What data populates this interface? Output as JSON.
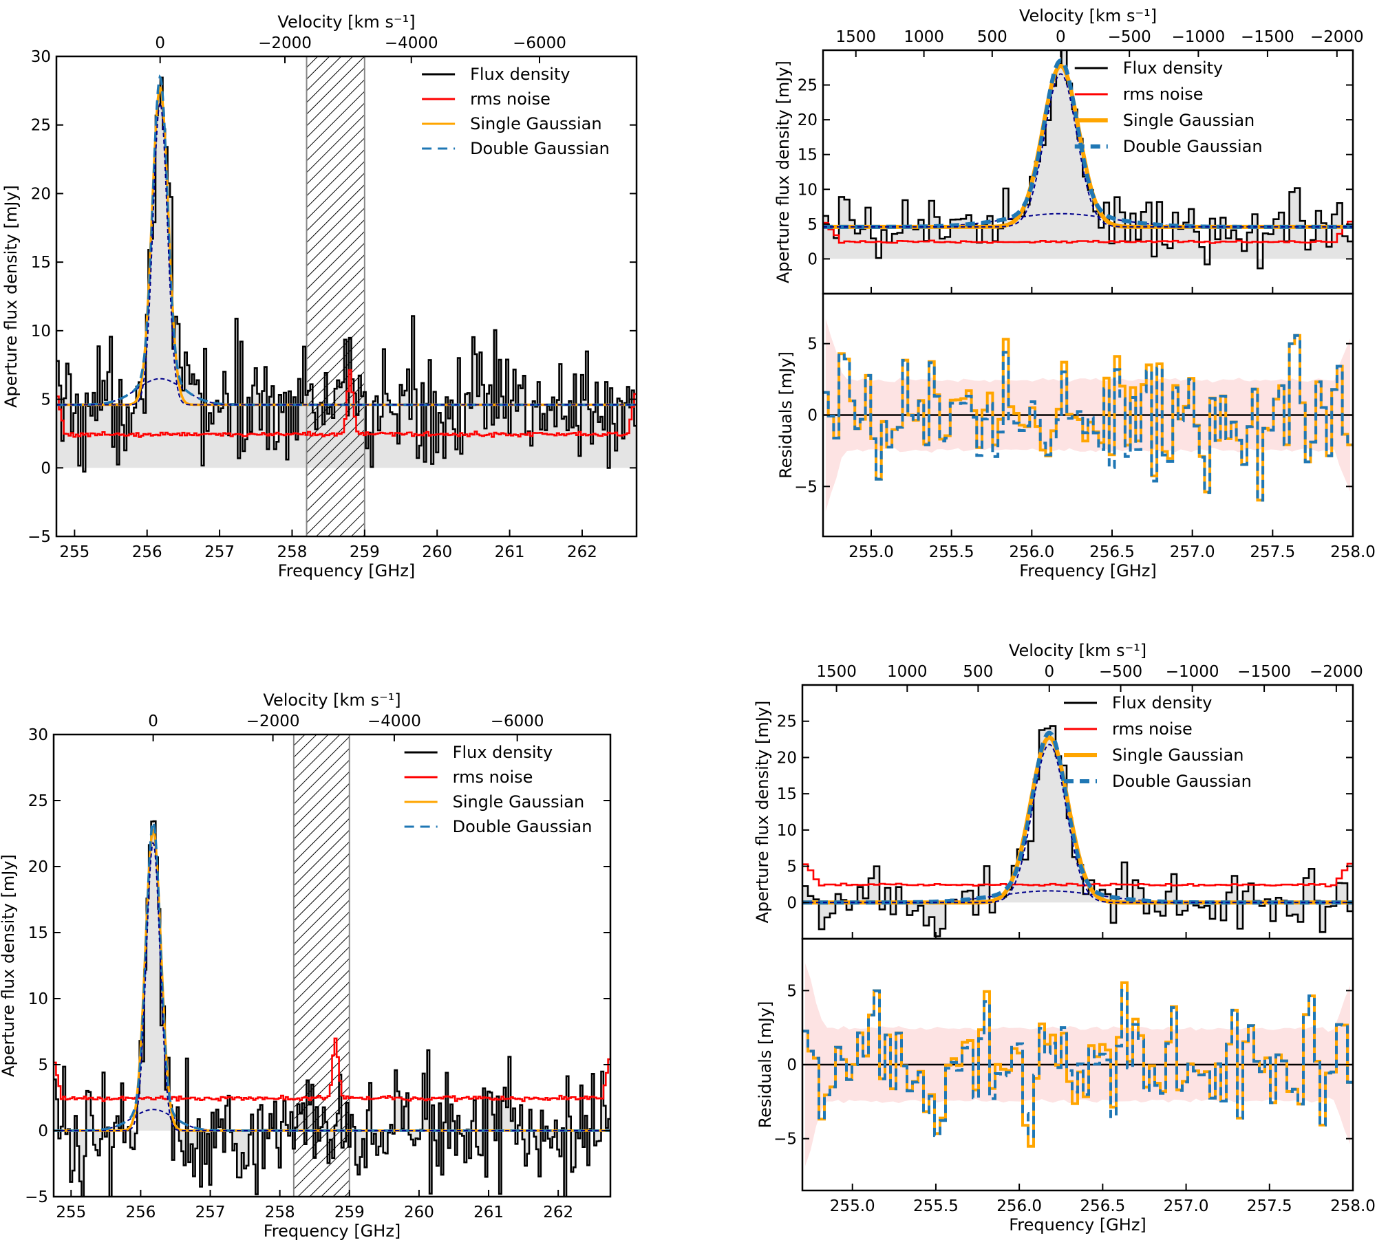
{
  "colors": {
    "flux": "#000000",
    "rms": "#ff0000",
    "single": "#ffa500",
    "double": "#1f77b4",
    "component": "#00008b",
    "shade": "#e4e4e4",
    "residual_band": "#fde3e3"
  },
  "chart_data": [
    {
      "id": "top_left",
      "type": "line",
      "title": "",
      "xlabel": "Frequency [GHz]",
      "ylabel": "Aperture flux density [mJy]",
      "top_axis_label": "Velocity [km s⁻¹]",
      "xlim": [
        254.75,
        262.75
      ],
      "ylim": [
        -5,
        30
      ],
      "xticks": [
        255,
        256,
        257,
        258,
        259,
        260,
        261,
        262
      ],
      "xtick_labels": [
        "255",
        "256",
        "257",
        "258",
        "259",
        "260",
        "261",
        "262"
      ],
      "yticks": [
        -5,
        0,
        5,
        10,
        15,
        20,
        25,
        30
      ],
      "ytick_labels": [
        "−5",
        "0",
        "5",
        "10",
        "15",
        "20",
        "25",
        "30"
      ],
      "top_ticks": [
        {
          "v": 0,
          "label": "0"
        },
        {
          "v": -2000,
          "label": "−2000"
        },
        {
          "v": -4000,
          "label": "−4000"
        },
        {
          "v": -6000,
          "label": "−6000"
        }
      ],
      "hatched_region": [
        258.2,
        259.0
      ],
      "continuum": 4.6,
      "line_center": 256.18,
      "narrow": {
        "amp": 22,
        "sigma": 0.1
      },
      "broad": {
        "amp": 1.9,
        "sigma": 0.32
      },
      "rms_level": 2.45,
      "rms_bump_at": 258.8,
      "legend": [
        "Flux density",
        "rms noise",
        "Single Gaussian",
        "Double Gaussian"
      ],
      "legend_position": "top-right"
    },
    {
      "id": "top_right",
      "type": "line",
      "title": "",
      "xlabel": "Frequency [GHz]",
      "ylabel": "Aperture flux density [mJy]",
      "residual_ylabel": "Residuals [mJy]",
      "top_axis_label": "Velocity [km s⁻¹]",
      "xlim": [
        254.7,
        258.0
      ],
      "ylim": [
        -5,
        30
      ],
      "yticks": [
        0,
        5,
        10,
        15,
        20,
        25
      ],
      "ytick_labels": [
        "0",
        "5",
        "10",
        "15",
        "20",
        "25"
      ],
      "residual_ylim": [
        -8.5,
        8.5
      ],
      "residual_yticks": [
        -5,
        0,
        5
      ],
      "residual_ytick_labels": [
        "−5",
        "0",
        "5"
      ],
      "xticks": [
        255.0,
        255.5,
        256.0,
        256.5,
        257.0,
        257.5,
        258.0
      ],
      "xtick_labels": [
        "255.0",
        "255.5",
        "256.0",
        "256.5",
        "257.0",
        "257.5",
        "258.0"
      ],
      "top_ticks": [
        {
          "v": 1500,
          "label": "1500"
        },
        {
          "v": 1000,
          "label": "1000"
        },
        {
          "v": 500,
          "label": "500"
        },
        {
          "v": 0,
          "label": "0"
        },
        {
          "v": -500,
          "label": "−500"
        },
        {
          "v": -1000,
          "label": "−1000"
        },
        {
          "v": -1500,
          "label": "−1500"
        },
        {
          "v": -2000,
          "label": "−2000"
        }
      ],
      "continuum": 4.6,
      "line_center": 256.18,
      "narrow": {
        "amp": 22,
        "sigma": 0.1
      },
      "broad": {
        "amp": 1.9,
        "sigma": 0.32
      },
      "rms_level": 2.45,
      "legend": [
        "Flux density",
        "rms noise",
        "Single Gaussian",
        "Double Gaussian"
      ],
      "legend_position": "top-right"
    },
    {
      "id": "bottom_left",
      "type": "line",
      "title": "",
      "xlabel": "Frequency [GHz]",
      "ylabel": "Aperture flux density [mJy]",
      "top_axis_label": "Velocity [km s⁻¹]",
      "xlim": [
        254.75,
        262.75
      ],
      "ylim": [
        -5,
        30
      ],
      "xticks": [
        255,
        256,
        257,
        258,
        259,
        260,
        261,
        262
      ],
      "xtick_labels": [
        "255",
        "256",
        "257",
        "258",
        "259",
        "260",
        "261",
        "262"
      ],
      "yticks": [
        -5,
        0,
        5,
        10,
        15,
        20,
        25,
        30
      ],
      "ytick_labels": [
        "−5",
        "0",
        "5",
        "10",
        "15",
        "20",
        "25",
        "30"
      ],
      "top_ticks": [
        {
          "v": 0,
          "label": "0"
        },
        {
          "v": -2000,
          "label": "−2000"
        },
        {
          "v": -4000,
          "label": "−4000"
        },
        {
          "v": -6000,
          "label": "−6000"
        }
      ],
      "hatched_region": [
        258.2,
        259.0
      ],
      "continuum": 0,
      "line_center": 256.18,
      "narrow": {
        "amp": 21.8,
        "sigma": 0.1
      },
      "broad": {
        "amp": 1.6,
        "sigma": 0.3
      },
      "rms_level": 2.45,
      "rms_bump_at": 258.8,
      "legend": [
        "Flux density",
        "rms noise",
        "Single Gaussian",
        "Double Gaussian"
      ],
      "legend_position": "top-right"
    },
    {
      "id": "bottom_right",
      "type": "line",
      "title": "",
      "xlabel": "Frequency [GHz]",
      "ylabel": "Aperture flux density [mJy]",
      "residual_ylabel": "Residuals [mJy]",
      "top_axis_label": "Velocity [km s⁻¹]",
      "xlim": [
        254.7,
        258.0
      ],
      "ylim": [
        -5,
        30
      ],
      "yticks": [
        0,
        5,
        10,
        15,
        20,
        25
      ],
      "ytick_labels": [
        "0",
        "5",
        "10",
        "15",
        "20",
        "25"
      ],
      "residual_ylim": [
        -8.5,
        8.5
      ],
      "residual_yticks": [
        -5,
        0,
        5
      ],
      "residual_ytick_labels": [
        "−5",
        "0",
        "5"
      ],
      "xticks": [
        255.0,
        255.5,
        256.0,
        256.5,
        257.0,
        257.5,
        258.0
      ],
      "xtick_labels": [
        "255.0",
        "255.5",
        "256.0",
        "256.5",
        "257.0",
        "257.5",
        "258.0"
      ],
      "top_ticks": [
        {
          "v": 1500,
          "label": "1500"
        },
        {
          "v": 1000,
          "label": "1000"
        },
        {
          "v": 500,
          "label": "500"
        },
        {
          "v": 0,
          "label": "0"
        },
        {
          "v": -500,
          "label": "−500"
        },
        {
          "v": -1000,
          "label": "−1000"
        },
        {
          "v": -1500,
          "label": "−1500"
        },
        {
          "v": -2000,
          "label": "−2000"
        }
      ],
      "continuum": 0,
      "line_center": 256.18,
      "narrow": {
        "amp": 21.8,
        "sigma": 0.1
      },
      "broad": {
        "amp": 1.6,
        "sigma": 0.3
      },
      "rms_level": 2.45,
      "legend": [
        "Flux density",
        "rms noise",
        "Single Gaussian",
        "Double Gaussian"
      ],
      "legend_position": "top-right"
    }
  ]
}
